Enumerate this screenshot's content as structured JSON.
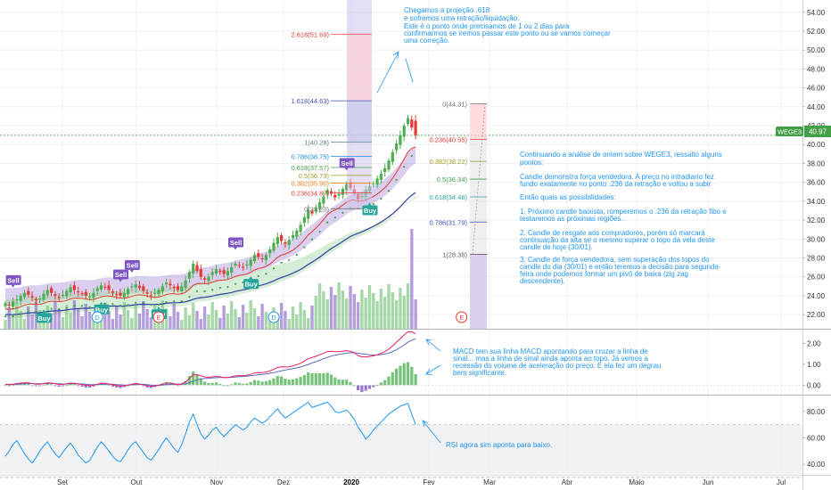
{
  "symbol": {
    "name": "WEGE3",
    "last_price": "40.97"
  },
  "colors": {
    "up": "#4caf50",
    "down": "#e53935",
    "ema_fast": "#e53935",
    "ema_slow": "#303f9f",
    "dots": "#43a047",
    "band": "#9575cd",
    "accent": "#2196f3",
    "rsi": "#2196f3",
    "macd": "#e91e63",
    "signal": "#5c6bc0"
  },
  "x_axis": {
    "labels": [
      "Set",
      "Out",
      "Nov",
      "Dez",
      "2020",
      "Fev",
      "Mar",
      "Abr",
      "Maio",
      "Jun",
      "Jul"
    ]
  },
  "chart_data": [
    {
      "type": "candlestick",
      "name": "price",
      "y_axis": {
        "ticks": [
          "54.00",
          "52.00",
          "50.00",
          "48.00",
          "46.00",
          "44.00",
          "42.00",
          "40.00",
          "38.00",
          "36.00",
          "34.00",
          "32.00",
          "30.00",
          "28.00",
          "26.00",
          "24.00",
          "22.00"
        ],
        "ylim": [
          20.5,
          55.3
        ]
      },
      "x": {
        "start": "2019-08-19",
        "end": "2020-01-30"
      },
      "close": [
        23.2,
        23.0,
        23.4,
        23.6,
        24.0,
        24.3,
        24.1,
        23.8,
        23.5,
        23.7,
        24.2,
        24.6,
        24.3,
        24.0,
        23.8,
        24.1,
        24.5,
        24.9,
        24.6,
        24.4,
        24.2,
        24.0,
        23.9,
        24.3,
        24.8,
        25.1,
        24.9,
        24.6,
        24.3,
        24.1,
        24.0,
        24.3,
        24.7,
        25.0,
        25.2,
        24.8,
        24.5,
        24.2,
        24.0,
        24.3,
        24.6,
        25.0,
        25.4,
        25.1,
        24.8,
        24.6,
        25.0,
        25.6,
        26.5,
        27.4,
        26.6,
        26.0,
        25.7,
        26.0,
        26.5,
        26.8,
        26.5,
        26.3,
        26.6,
        27.0,
        27.4,
        27.2,
        27.0,
        27.3,
        27.8,
        28.3,
        28.1,
        27.9,
        28.3,
        28.9,
        29.6,
        30.2,
        29.8,
        29.5,
        29.9,
        30.4,
        30.9,
        31.5,
        32.3,
        33.1,
        32.7,
        33.3,
        33.9,
        34.5,
        35.2,
        34.8,
        34.4,
        34.8,
        35.3,
        35.8,
        35.4,
        34.9,
        34.2,
        34.6,
        35.2,
        35.6,
        35.9,
        36.4,
        36.9,
        37.5,
        38.3,
        39.2,
        40.1,
        41.0,
        42.0,
        42.8,
        41.8,
        40.97
      ],
      "rsi": [
        46,
        50,
        55,
        58,
        53,
        48,
        44,
        41,
        45,
        50,
        54,
        57,
        52,
        48,
        45,
        49,
        53,
        56,
        52,
        47,
        44,
        41,
        43,
        48,
        53,
        57,
        54,
        50,
        46,
        43,
        42,
        46,
        51,
        55,
        57,
        53,
        49,
        45,
        43,
        47,
        51,
        56,
        60,
        56,
        52,
        49,
        55,
        63,
        72,
        78,
        70,
        63,
        59,
        62,
        66,
        68,
        64,
        61,
        64,
        67,
        70,
        68,
        66,
        68,
        72,
        75,
        73,
        71,
        73,
        76,
        79,
        82,
        78,
        75,
        77,
        79,
        81,
        83,
        85,
        87,
        83,
        84,
        85,
        86,
        87,
        84,
        80,
        79,
        80,
        81,
        78,
        74,
        68,
        64,
        59,
        62,
        66,
        69,
        72,
        75,
        78,
        80,
        82,
        84,
        85,
        86,
        78,
        70
      ],
      "macd": [
        0.05,
        0.03,
        0.05,
        0.08,
        0.1,
        0.12,
        0.11,
        0.08,
        0.05,
        0.05,
        0.08,
        0.11,
        0.1,
        0.07,
        0.04,
        0.04,
        0.07,
        0.1,
        0.09,
        0.06,
        0.03,
        0.0,
        -0.02,
        0.0,
        0.05,
        0.09,
        0.09,
        0.06,
        0.02,
        -0.02,
        -0.04,
        -0.03,
        0.01,
        0.05,
        0.08,
        0.06,
        0.02,
        -0.02,
        -0.05,
        -0.04,
        0.0,
        0.05,
        0.1,
        0.1,
        0.07,
        0.04,
        0.07,
        0.16,
        0.32,
        0.5,
        0.5,
        0.45,
        0.4,
        0.38,
        0.4,
        0.42,
        0.4,
        0.37,
        0.37,
        0.4,
        0.45,
        0.46,
        0.45,
        0.47,
        0.52,
        0.58,
        0.6,
        0.6,
        0.63,
        0.68,
        0.75,
        0.85,
        0.88,
        0.87,
        0.88,
        0.92,
        0.98,
        1.05,
        1.15,
        1.27,
        1.32,
        1.38,
        1.45,
        1.52,
        1.6,
        1.62,
        1.6,
        1.6,
        1.62,
        1.65,
        1.62,
        1.55,
        1.42,
        1.35,
        1.35,
        1.37,
        1.4,
        1.45,
        1.52,
        1.6,
        1.72,
        1.88,
        2.05,
        2.22,
        2.4,
        2.55,
        2.55,
        2.45
      ],
      "signal": [
        0.04,
        0.04,
        0.04,
        0.05,
        0.06,
        0.07,
        0.08,
        0.08,
        0.07,
        0.07,
        0.07,
        0.08,
        0.08,
        0.08,
        0.07,
        0.06,
        0.06,
        0.07,
        0.07,
        0.07,
        0.06,
        0.05,
        0.03,
        0.03,
        0.03,
        0.04,
        0.05,
        0.05,
        0.05,
        0.03,
        0.02,
        0.01,
        0.01,
        0.02,
        0.03,
        0.04,
        0.04,
        0.03,
        0.01,
        0.0,
        0.0,
        0.01,
        0.03,
        0.04,
        0.05,
        0.05,
        0.05,
        0.07,
        0.12,
        0.2,
        0.26,
        0.3,
        0.32,
        0.33,
        0.35,
        0.36,
        0.37,
        0.37,
        0.37,
        0.38,
        0.39,
        0.41,
        0.42,
        0.43,
        0.45,
        0.47,
        0.5,
        0.52,
        0.54,
        0.57,
        0.6,
        0.65,
        0.69,
        0.73,
        0.76,
        0.79,
        0.83,
        0.87,
        0.93,
        0.99,
        1.06,
        1.12,
        1.19,
        1.26,
        1.33,
        1.39,
        1.43,
        1.47,
        1.5,
        1.53,
        1.55,
        1.55,
        1.53,
        1.5,
        1.47,
        1.45,
        1.44,
        1.44,
        1.46,
        1.49,
        1.53,
        1.6,
        1.69,
        1.8,
        1.92,
        2.05,
        2.15,
        2.21
      ]
    },
    {
      "type": "line",
      "name": "MACD",
      "y_axis": {
        "ticks": [
          "2.00",
          "1.00",
          "0.00"
        ],
        "ylim": [
          -0.45,
          2.65
        ]
      }
    },
    {
      "type": "line",
      "name": "RSI",
      "y_axis": {
        "ticks": [
          "80.00",
          "60.00",
          "40.00"
        ],
        "ylim": [
          32,
          92
        ],
        "band": [
          30,
          70
        ]
      }
    }
  ],
  "fib_left": [
    {
      "label": "2.618(51.69)",
      "value": 51.69
    },
    {
      "label": "1.618(44.63)",
      "value": 44.63
    },
    {
      "label": "1(40.26)",
      "value": 40.26
    },
    {
      "label": "0.786(38.75)",
      "value": 38.75
    },
    {
      "label": "0.618(37.57)",
      "value": 37.57
    },
    {
      "label": "0.5(36.73)",
      "value": 36.73
    },
    {
      "label": "0.382(35.90)",
      "value": 35.9
    },
    {
      "label": "0.236(34.87)",
      "value": 34.87
    },
    {
      "label": "0(33.20)",
      "value": 33.2
    }
  ],
  "fib_right": [
    {
      "label": "0(44.31)",
      "value": 44.31
    },
    {
      "label": "0.236(40.55)",
      "value": 40.55
    },
    {
      "label": "0.382(38.22)",
      "value": 38.22
    },
    {
      "label": "0.5(36.34)",
      "value": 36.34
    },
    {
      "label": "0.618(34.46)",
      "value": 34.46
    },
    {
      "label": "0.786(31.79)",
      "value": 31.79
    },
    {
      "label": "1(28.38)",
      "value": 28.38
    }
  ],
  "signals": [
    {
      "text": "Sell",
      "kind": "sell",
      "bar": 2
    },
    {
      "text": "Buy",
      "kind": "buy",
      "bar": 10
    },
    {
      "text": "Buy",
      "kind": "buy",
      "bar": 25
    },
    {
      "text": "Sell",
      "kind": "sell",
      "bar": 30
    },
    {
      "text": "Sell",
      "kind": "sell",
      "bar": 33
    },
    {
      "text": "Buy",
      "kind": "buy",
      "bar": 40
    },
    {
      "text": "Sell",
      "kind": "sell",
      "bar": 60
    },
    {
      "text": "Buy",
      "kind": "buy",
      "bar": 64
    },
    {
      "text": "Sell",
      "kind": "sell",
      "bar": 89
    },
    {
      "text": "Buy",
      "kind": "buy",
      "bar": 95
    }
  ],
  "events": [
    {
      "text": "D",
      "bar": 24
    },
    {
      "text": "E",
      "bar": 40
    },
    {
      "text": "D",
      "bar": 70
    },
    {
      "text": "E",
      "future_offset": 12
    }
  ],
  "notes": {
    "top": [
      "Chegamos a projeção .618",
      "e sofremos uma retração/liquidação.",
      "Este é o ponto onde precisamos de 1 ou 2 dias para",
      "confirmarmos se iremos passar este ponto ou se vamos começar",
      "uma correção."
    ],
    "analysis": [
      "Continuando a análise de ontem sobre WEGE3, ressalto alguns",
      "pontos:",
      "",
      "Candle demonstra força vendedora. A preço no intradiario fez",
      "fundo exatamente no ponto .236 da retração e voltou a subir",
      "",
      "Então quais as possibilidades:",
      "",
      "1. Próximo candle baixista, romperemos o .236 da retração fibo e",
      "testaremos as próximas regiões.",
      "",
      "2. Candle de resgate aos compradores, porém só marcará",
      "continuação da alta se o mesmo superar o topo da vela deste",
      "candle de hoje (30/01).",
      "",
      "3. Candle de força vendedora, sem superação dos topos do",
      "candle do dia (30/01) e então teremos a decisão para segunda-",
      "feira onde podemos formar um pivô de baixa (zig zag",
      "descendente)."
    ],
    "macd": [
      "MACD tem sua linha MACD apontando para cruzar a linha de",
      "sinal... mas a linha de sinal ainda aponta ao topo. Já vemos a",
      "recessão do volume de aceleração do preço. E ela fez um degrau",
      "bem significante."
    ],
    "rsi": [
      "RSI agora sim aponta para baixo."
    ]
  }
}
